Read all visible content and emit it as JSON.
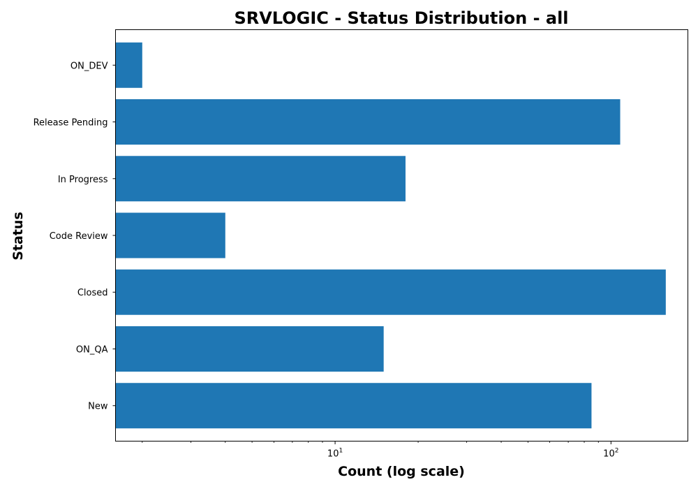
{
  "chart_data": {
    "type": "bar",
    "orientation": "horizontal",
    "title": "SRVLOGIC - Status Distribution - all",
    "xlabel": "Count (log scale)",
    "ylabel": "Status",
    "x_scale": "log",
    "xlim": [
      1.6,
      190
    ],
    "x_ticks": [
      {
        "value": 10,
        "base": "10",
        "exp": "1"
      },
      {
        "value": 100,
        "base": "10",
        "exp": "2"
      }
    ],
    "categories": [
      "New",
      "ON_QA",
      "Closed",
      "Code Review",
      "In Progress",
      "Release Pending",
      "ON_DEV"
    ],
    "values": [
      85,
      15,
      158,
      4,
      18,
      108,
      2
    ],
    "bar_color": "#1f77b4",
    "grid": false,
    "legend": "none"
  }
}
